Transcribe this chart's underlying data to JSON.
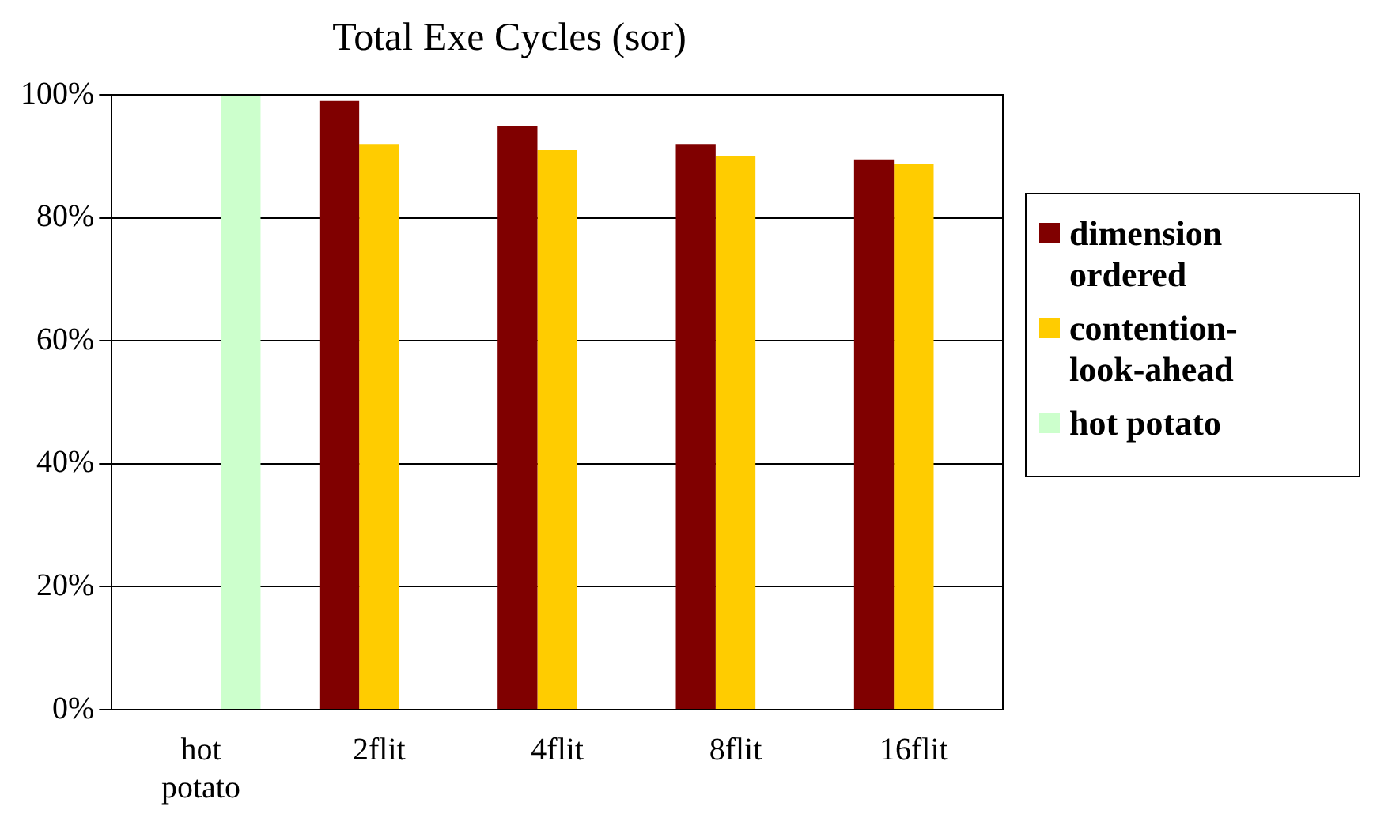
{
  "chart_data": {
    "type": "bar",
    "title": "Total Exe Cycles (sor)",
    "categories": [
      "hot potato",
      "2flit",
      "4flit",
      "8flit",
      "16flit"
    ],
    "series": [
      {
        "name": "dimension ordered",
        "color": "#800000",
        "values": [
          null,
          99,
          95,
          92,
          89.5
        ]
      },
      {
        "name": "contention-look-ahead",
        "color": "#ffcc00",
        "values": [
          null,
          92,
          91,
          90,
          88.7
        ]
      },
      {
        "name": "hot potato",
        "color": "#ccffcc",
        "values": [
          100,
          null,
          null,
          null,
          null
        ]
      }
    ],
    "ylim": [
      0,
      100
    ],
    "yticks": [
      {
        "value": 0,
        "label": "0%"
      },
      {
        "value": 20,
        "label": "20%"
      },
      {
        "value": 40,
        "label": "40%"
      },
      {
        "value": 60,
        "label": "60%"
      },
      {
        "value": 80,
        "label": "80%"
      },
      {
        "value": 100,
        "label": "100%"
      }
    ],
    "grid": "y",
    "legend": "right"
  }
}
